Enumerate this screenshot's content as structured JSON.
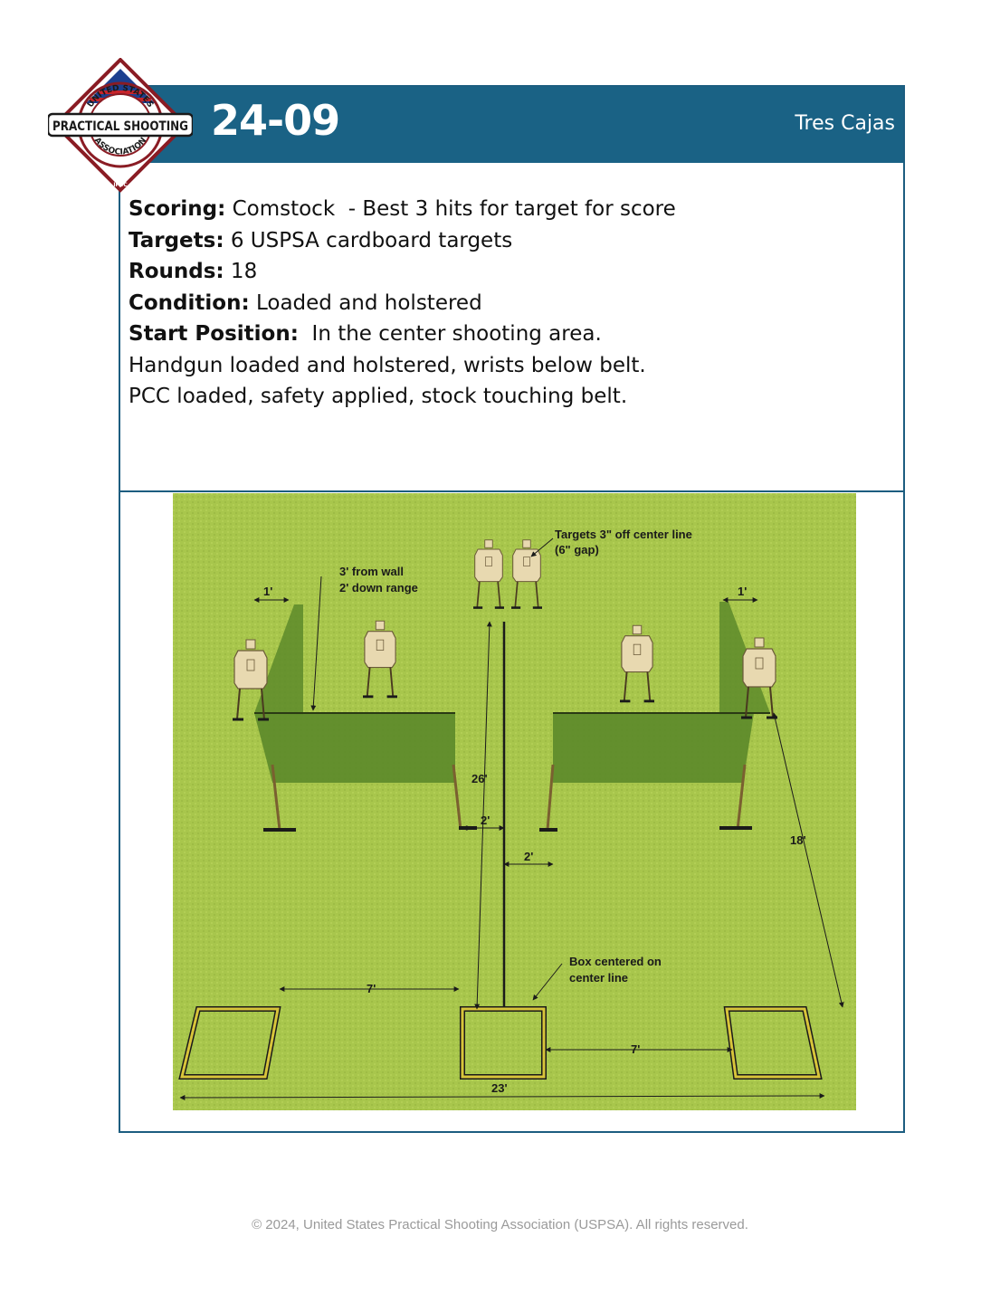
{
  "header": {
    "stage_number": "24-09",
    "stage_name": "Tres Cajas"
  },
  "logo": {
    "top_text": "UNITED STATES",
    "main_text": "PRACTICAL SHOOTING",
    "bottom_text": "ASSOCIATION",
    "tag": "IPSC"
  },
  "info": {
    "scoring_label": "Scoring:",
    "scoring_value": " Comstock  - Best 3 hits for target for score",
    "targets_label": "Targets:",
    "targets_value": " 6 USPSA cardboard targets",
    "rounds_label": "Rounds:",
    "rounds_value": " 18",
    "condition_label": "Condition:",
    "condition_value": " Loaded and holstered",
    "start_label": "Start Position:",
    "start_value": "  In the center shooting area.",
    "start_line2": "Handgun loaded and holstered, wrists below belt.",
    "start_line3": "PCC loaded, safety applied, stock touching belt."
  },
  "diagram": {
    "colors": {
      "grass": "#a8c64c",
      "wall": "#5d8a2a",
      "box": "#d8c43a"
    },
    "notes": {
      "targets_center_1": "Targets 3\" off center line",
      "targets_center_2": "(6\" gap)",
      "wall_note_1": "3' from wall",
      "wall_note_2": "2' down range",
      "box_note_1": "Box centered on",
      "box_note_2": "center line"
    },
    "dims": {
      "left_1ft": "1'",
      "right_1ft": "1'",
      "d26": "26'",
      "d2a": "2'",
      "d2b": "2'",
      "d18": "18'",
      "d7a": "7'",
      "d7b": "7'",
      "d23": "23'"
    }
  },
  "footer": {
    "copyright": "© 2024, United States Practical Shooting Association (USPSA). All rights reserved."
  }
}
